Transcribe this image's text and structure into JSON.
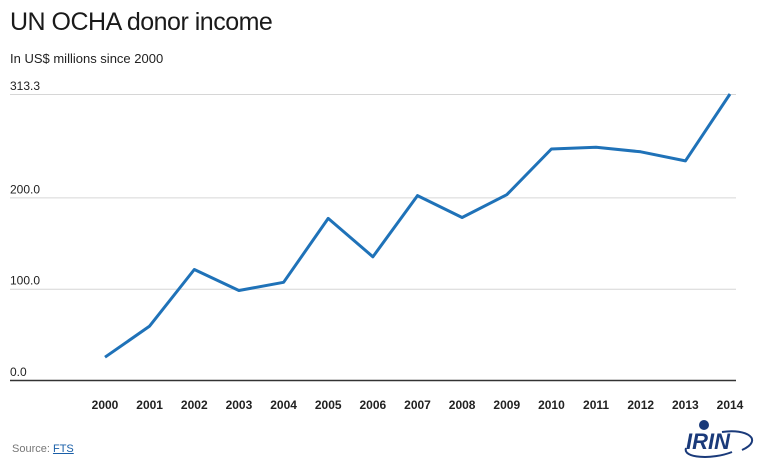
{
  "chart_data": {
    "type": "line",
    "title": "UN OCHA donor income",
    "subtitle": "In US$ millions since 2000",
    "x": [
      "2000",
      "2001",
      "2002",
      "2003",
      "2004",
      "2005",
      "2006",
      "2007",
      "2008",
      "2009",
      "2010",
      "2011",
      "2012",
      "2013",
      "2014"
    ],
    "series": [
      {
        "values": [
          25,
          59,
          121,
          98,
          107,
          177,
          135,
          202,
          178,
          203,
          253,
          255,
          250,
          240,
          313.3
        ],
        "color": "#1f72b8"
      }
    ],
    "yticks": [
      "313.3",
      "200.0",
      "100.0",
      "0.0"
    ],
    "ytick_values": [
      313.3,
      200,
      100,
      0
    ],
    "ylim": [
      0,
      313.3
    ],
    "grid": true
  },
  "source": {
    "label": "Source: ",
    "link_text": "FTS"
  },
  "logo": {
    "text": "IRIN",
    "color": "#1a3a7a"
  }
}
